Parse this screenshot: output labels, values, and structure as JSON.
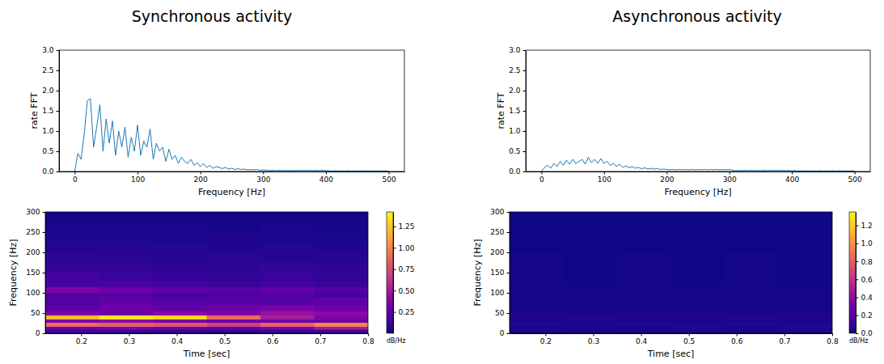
{
  "chart_data": [
    {
      "type": "line",
      "title": "Synchronous activity",
      "xlabel": "Frequency [Hz]",
      "ylabel": "rate FFT",
      "color": "#1f77b4",
      "xlim": [
        -25,
        525
      ],
      "xticks": [
        0,
        100,
        200,
        300,
        400,
        500
      ],
      "ylim": [
        0,
        3
      ],
      "yticks": [
        {
          "value": 0,
          "label": "0.0"
        },
        0.5,
        {
          "value": 1,
          "label": "1.0"
        },
        1.5,
        {
          "value": 2,
          "label": "2.0"
        },
        2.5,
        {
          "value": 3,
          "label": "3.0"
        }
      ],
      "x": [
        0,
        5,
        10,
        15,
        20,
        25,
        30,
        35,
        40,
        45,
        50,
        55,
        60,
        65,
        70,
        75,
        80,
        85,
        90,
        95,
        100,
        105,
        110,
        115,
        120,
        125,
        130,
        135,
        140,
        145,
        150,
        155,
        160,
        165,
        170,
        175,
        180,
        185,
        190,
        195,
        200,
        205,
        210,
        215,
        220,
        225,
        230,
        235,
        240,
        245,
        250,
        255,
        260,
        265,
        270,
        275,
        280,
        285,
        290,
        295,
        300,
        305,
        310,
        315,
        320,
        325,
        330,
        335,
        340,
        345,
        350,
        355,
        360,
        365,
        370,
        375,
        380,
        385,
        390,
        395,
        400,
        405,
        410,
        415,
        420,
        425,
        430,
        435,
        440,
        445,
        450,
        455,
        460,
        465,
        470,
        475,
        480,
        485,
        490,
        495,
        500
      ],
      "values": [
        0.0,
        0.45,
        0.3,
        0.9,
        1.75,
        1.8,
        0.6,
        1.1,
        1.65,
        0.5,
        1.3,
        0.7,
        1.25,
        0.4,
        1.0,
        0.6,
        1.1,
        0.35,
        0.85,
        0.5,
        1.15,
        0.4,
        0.75,
        0.6,
        1.05,
        0.3,
        0.7,
        0.5,
        0.6,
        0.25,
        0.55,
        0.3,
        0.4,
        0.2,
        0.35,
        0.25,
        0.2,
        0.3,
        0.15,
        0.22,
        0.12,
        0.2,
        0.1,
        0.15,
        0.08,
        0.12,
        0.1,
        0.07,
        0.1,
        0.06,
        0.08,
        0.05,
        0.07,
        0.05,
        0.06,
        0.04,
        0.05,
        0.04,
        0.05,
        0.03,
        0.04,
        0.03,
        0.02,
        0.03,
        0.02,
        0.03,
        0.02,
        0.03,
        0.02,
        0.03,
        0.02,
        0.03,
        0.02,
        0.03,
        0.02,
        0.03,
        0.02,
        0.03,
        0.02,
        0.03,
        0.02,
        0.02,
        0.01,
        0.02,
        0.01,
        0.02,
        0.01,
        0.02,
        0.01,
        0.02,
        0.01,
        0.02,
        0.01,
        0.02,
        0.01,
        0.02,
        0.01,
        0.02,
        0.01,
        0.02,
        0.01
      ]
    },
    {
      "type": "line",
      "title": "Asynchronous activity",
      "xlabel": "Frequency [Hz]",
      "ylabel": "rate FFT",
      "color": "#1f77b4",
      "xlim": [
        -25,
        525
      ],
      "xticks": [
        0,
        100,
        200,
        300,
        400,
        500
      ],
      "ylim": [
        0,
        3
      ],
      "yticks": [
        {
          "value": 0,
          "label": "0.0"
        },
        0.5,
        {
          "value": 1,
          "label": "1.0"
        },
        1.5,
        {
          "value": 2,
          "label": "2.0"
        },
        2.5,
        {
          "value": 3,
          "label": "3.0"
        }
      ],
      "x": [
        0,
        5,
        10,
        15,
        20,
        25,
        30,
        35,
        40,
        45,
        50,
        55,
        60,
        65,
        70,
        75,
        80,
        85,
        90,
        95,
        100,
        105,
        110,
        115,
        120,
        125,
        130,
        135,
        140,
        145,
        150,
        155,
        160,
        165,
        170,
        175,
        180,
        185,
        190,
        195,
        200,
        205,
        210,
        215,
        220,
        225,
        230,
        235,
        240,
        245,
        250,
        255,
        260,
        265,
        270,
        275,
        280,
        285,
        290,
        295,
        300,
        305,
        310,
        315,
        320,
        325,
        330,
        335,
        340,
        345,
        350,
        355,
        360,
        365,
        370,
        375,
        380,
        385,
        390,
        395,
        400,
        405,
        410,
        415,
        420,
        425,
        430,
        435,
        440,
        445,
        450,
        455,
        460,
        465,
        470,
        475,
        480,
        485,
        490,
        495,
        500
      ],
      "values": [
        0.0,
        0.1,
        0.15,
        0.08,
        0.2,
        0.12,
        0.25,
        0.15,
        0.28,
        0.18,
        0.3,
        0.2,
        0.25,
        0.3,
        0.18,
        0.35,
        0.22,
        0.3,
        0.2,
        0.32,
        0.2,
        0.25,
        0.15,
        0.2,
        0.12,
        0.18,
        0.1,
        0.14,
        0.09,
        0.12,
        0.08,
        0.1,
        0.07,
        0.09,
        0.06,
        0.08,
        0.06,
        0.07,
        0.05,
        0.06,
        0.05,
        0.04,
        0.05,
        0.04,
        0.05,
        0.04,
        0.05,
        0.04,
        0.05,
        0.04,
        0.05,
        0.04,
        0.05,
        0.04,
        0.05,
        0.04,
        0.05,
        0.04,
        0.05,
        0.04,
        0.05,
        0.03,
        0.02,
        0.03,
        0.02,
        0.03,
        0.02,
        0.03,
        0.02,
        0.03,
        0.02,
        0.03,
        0.02,
        0.03,
        0.02,
        0.03,
        0.02,
        0.03,
        0.02,
        0.03,
        0.02,
        0.02,
        0.01,
        0.02,
        0.01,
        0.02,
        0.01,
        0.02,
        0.01,
        0.02,
        0.01,
        0.02,
        0.01,
        0.02,
        0.01,
        0.02,
        0.01,
        0.02,
        0.01,
        0.02,
        0.01
      ]
    },
    {
      "type": "heatmap",
      "xlabel": "Time [sec]",
      "ylabel": "Frequency [Hz]",
      "xlim": [
        0.125,
        0.8
      ],
      "xticks": [
        0.2,
        0.3,
        0.4,
        0.5,
        0.6,
        0.7,
        0.8
      ],
      "ylim": [
        0,
        300
      ],
      "yticks": [
        0,
        50,
        100,
        150,
        200,
        250,
        300
      ],
      "x_edges": [
        0.125,
        0.2375,
        0.35,
        0.4625,
        0.575,
        0.6875,
        0.8
      ],
      "y_edges": [
        0,
        10,
        17,
        27,
        35,
        45,
        55,
        70,
        90,
        100,
        115,
        130,
        150,
        175,
        200,
        225,
        250,
        275,
        300
      ],
      "values": [
        [
          0.15,
          0.12,
          0.1,
          0.1,
          0.12,
          0.15
        ],
        [
          0.3,
          0.35,
          0.3,
          0.25,
          0.35,
          0.5
        ],
        [
          0.9,
          0.85,
          0.8,
          0.7,
          0.85,
          1.0
        ],
        [
          0.35,
          0.4,
          0.35,
          0.3,
          0.3,
          0.3
        ],
        [
          1.2,
          1.35,
          1.3,
          0.9,
          0.5,
          0.35
        ],
        [
          0.35,
          0.3,
          0.4,
          0.35,
          0.45,
          0.4
        ],
        [
          0.25,
          0.3,
          0.25,
          0.3,
          0.35,
          0.3
        ],
        [
          0.2,
          0.25,
          0.2,
          0.22,
          0.2,
          0.25
        ],
        [
          0.18,
          0.2,
          0.15,
          0.18,
          0.2,
          0.15
        ],
        [
          0.35,
          0.3,
          0.25,
          0.2,
          0.25,
          0.2
        ],
        [
          0.15,
          0.18,
          0.15,
          0.12,
          0.15,
          0.12
        ],
        [
          0.15,
          0.12,
          0.12,
          0.1,
          0.12,
          0.1
        ],
        [
          0.1,
          0.1,
          0.08,
          0.08,
          0.1,
          0.08
        ],
        [
          0.08,
          0.07,
          0.06,
          0.07,
          0.06,
          0.06
        ],
        [
          0.05,
          0.05,
          0.05,
          0.04,
          0.05,
          0.04
        ],
        [
          0.04,
          0.04,
          0.03,
          0.04,
          0.03,
          0.03
        ],
        [
          0.03,
          0.03,
          0.03,
          0.02,
          0.03,
          0.02
        ],
        [
          0.02,
          0.02,
          0.02,
          0.02,
          0.02,
          0.02
        ]
      ],
      "colorbar": {
        "range": [
          0,
          1.42
        ],
        "ticks": [
          0.25,
          {
            "value": 0.5,
            "label": "0.50"
          },
          0.75,
          {
            "value": 1,
            "label": "1.00"
          },
          1.25
        ],
        "label": "dB/Hz"
      }
    },
    {
      "type": "heatmap",
      "xlabel": "Time [sec]",
      "ylabel": "Frequency [Hz]",
      "xlim": [
        0.125,
        0.8
      ],
      "xticks": [
        0.2,
        0.3,
        0.4,
        0.5,
        0.6,
        0.7,
        0.8
      ],
      "ylim": [
        0,
        300
      ],
      "yticks": [
        0,
        50,
        100,
        150,
        200,
        250,
        300
      ],
      "x_edges": [
        0.125,
        0.2375,
        0.35,
        0.4625,
        0.575,
        0.6875,
        0.8
      ],
      "y_edges": [
        0,
        10,
        17,
        27,
        35,
        45,
        55,
        70,
        90,
        100,
        115,
        130,
        150,
        175,
        200,
        225,
        250,
        275,
        300
      ],
      "values": [
        [
          0.03,
          0.02,
          0.02,
          0.03,
          0.02,
          0.03
        ],
        [
          0.03,
          0.03,
          0.02,
          0.03,
          0.03,
          0.04
        ],
        [
          0.05,
          0.04,
          0.05,
          0.04,
          0.05,
          0.05
        ],
        [
          0.03,
          0.03,
          0.03,
          0.02,
          0.03,
          0.03
        ],
        [
          0.04,
          0.05,
          0.04,
          0.04,
          0.05,
          0.04
        ],
        [
          0.03,
          0.03,
          0.03,
          0.03,
          0.03,
          0.03
        ],
        [
          0.02,
          0.02,
          0.02,
          0.02,
          0.02,
          0.02
        ],
        [
          0.02,
          0.02,
          0.02,
          0.02,
          0.02,
          0.02
        ],
        [
          0.02,
          0.02,
          0.02,
          0.02,
          0.02,
          0.02
        ],
        [
          0.02,
          0.02,
          0.02,
          0.02,
          0.02,
          0.02
        ],
        [
          0.02,
          0.01,
          0.02,
          0.01,
          0.02,
          0.01
        ],
        [
          0.02,
          0.01,
          0.02,
          0.01,
          0.02,
          0.01
        ],
        [
          0.02,
          0.01,
          0.02,
          0.01,
          0.02,
          0.01
        ],
        [
          0.02,
          0.01,
          0.02,
          0.01,
          0.02,
          0.01
        ],
        [
          0.01,
          0.01,
          0.01,
          0.01,
          0.01,
          0.01
        ],
        [
          0.01,
          0.01,
          0.01,
          0.01,
          0.01,
          0.01
        ],
        [
          0.01,
          0.01,
          0.01,
          0.01,
          0.01,
          0.01
        ],
        [
          0.01,
          0.01,
          0.01,
          0.01,
          0.01,
          0.01
        ]
      ],
      "colorbar": {
        "range": [
          0,
          1.35
        ],
        "ticks": [
          {
            "value": 0,
            "label": "0.0"
          },
          0.2,
          0.4,
          0.6,
          0.8,
          {
            "value": 1,
            "label": "1.0"
          },
          1.2
        ],
        "label": "dB/Hz"
      }
    }
  ]
}
